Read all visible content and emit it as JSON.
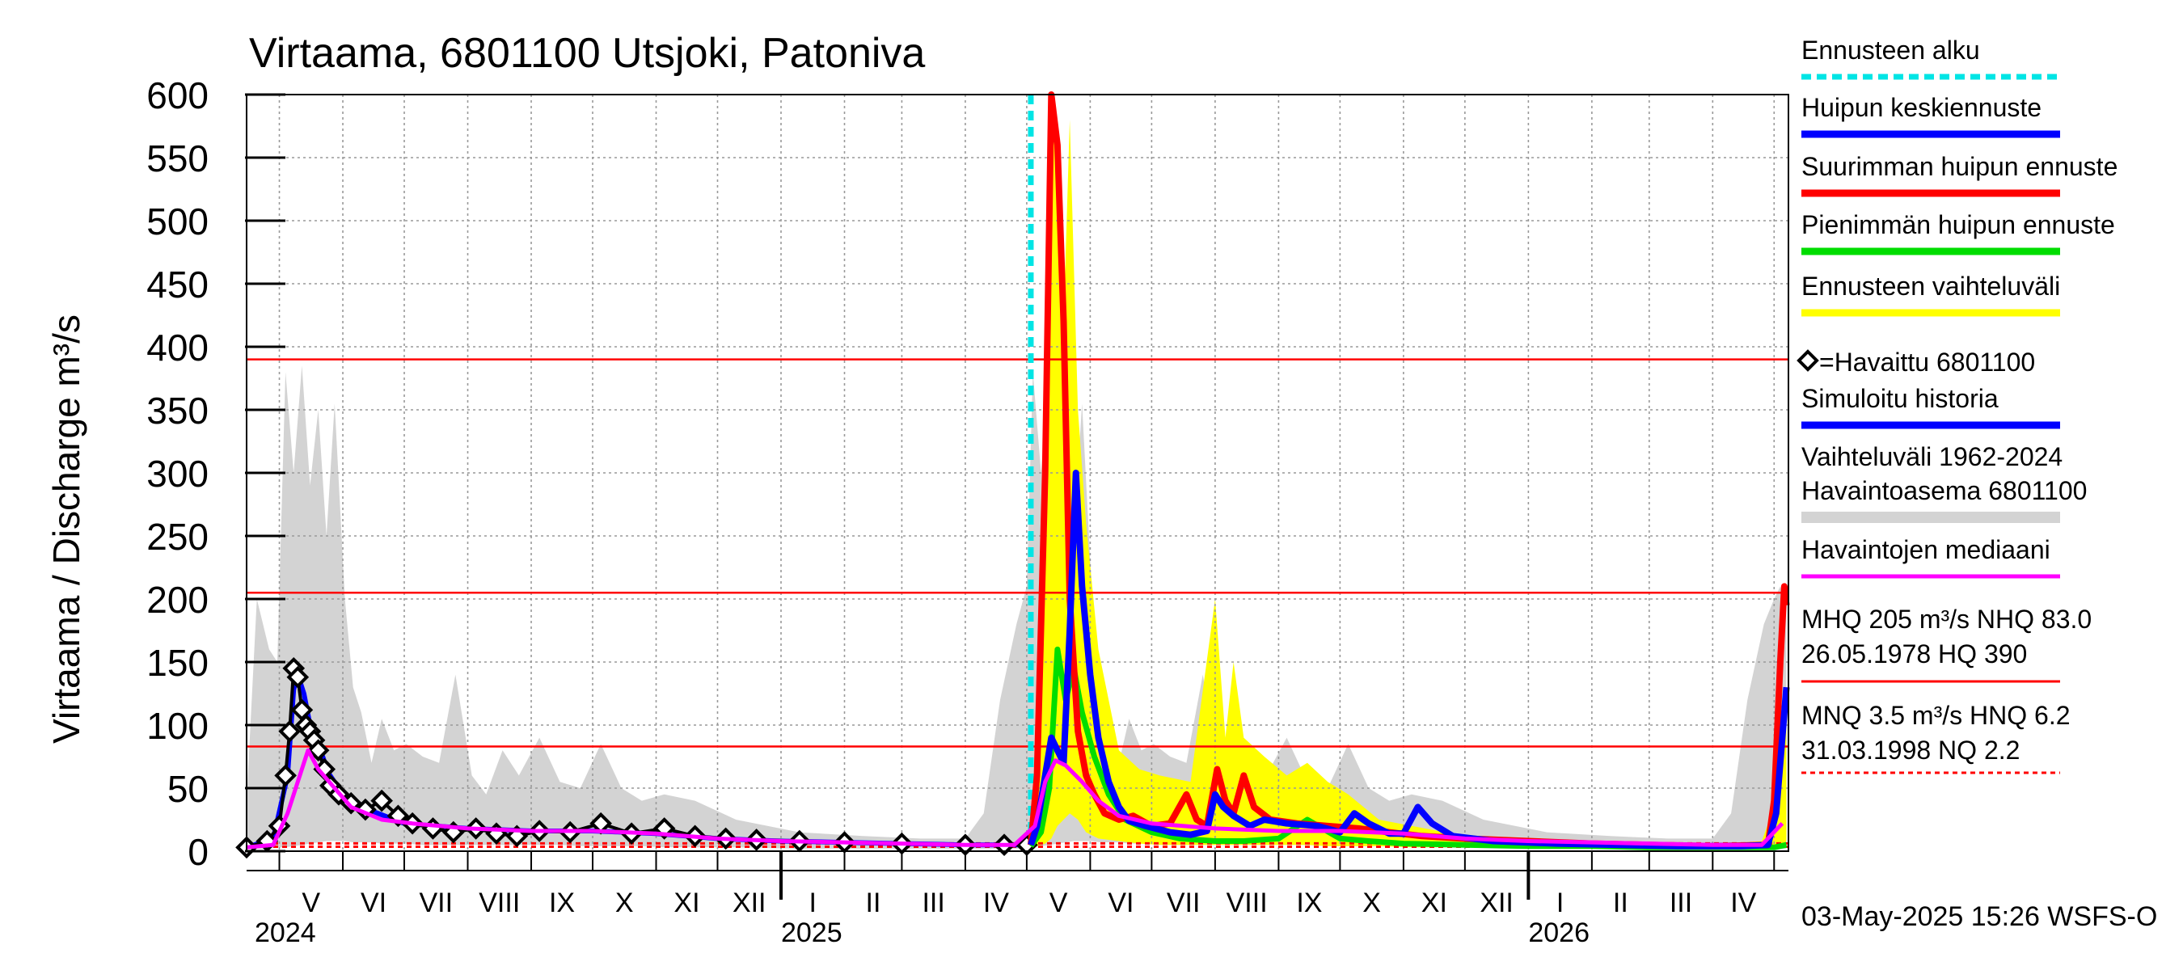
{
  "chart_data": {
    "type": "line",
    "title": "Virtaama, 6801100 Utsjoki, Patoniva",
    "ylabel": "Virtaama / Discharge    m³/s",
    "ylim": [
      0,
      600
    ],
    "yticks": [
      0,
      50,
      100,
      150,
      200,
      250,
      300,
      350,
      400,
      450,
      500,
      550,
      600
    ],
    "xrange": [
      "2024-04-15",
      "2026-05-08"
    ],
    "months": [
      "V",
      "VI",
      "VII",
      "VIII",
      "IX",
      "X",
      "XI",
      "XII",
      "I",
      "II",
      "III",
      "IV",
      "V",
      "VI",
      "VII",
      "VIII",
      "IX",
      "X",
      "XI",
      "XII",
      "I",
      "II",
      "III",
      "IV"
    ],
    "years": [
      "2024",
      "2025",
      "2026"
    ],
    "forecast_start": "2025-05-03",
    "reference_lines": [
      {
        "name": "HQ",
        "value": 390,
        "color": "#ff0000",
        "style": "solid"
      },
      {
        "name": "MHQ",
        "value": 205,
        "color": "#ff0000",
        "style": "solid"
      },
      {
        "name": "NHQ",
        "value": 83,
        "color": "#ff0000",
        "style": "solid"
      },
      {
        "name": "HNQ",
        "value": 6.2,
        "color": "#ff0000",
        "style": "dotted"
      },
      {
        "name": "MNQ",
        "value": 3.5,
        "color": "#ff0000",
        "style": "dotted"
      }
    ],
    "series": [
      {
        "name": "Havaittu 6801100",
        "color": "#000000",
        "style": "diamond-line",
        "x": [
          "2024-04-15",
          "2024-04-25",
          "2024-05-01",
          "2024-05-04",
          "2024-05-06",
          "2024-05-08",
          "2024-05-10",
          "2024-05-12",
          "2024-05-14",
          "2024-05-16",
          "2024-05-18",
          "2024-05-20",
          "2024-05-23",
          "2024-05-26",
          "2024-05-30",
          "2024-06-05",
          "2024-06-12",
          "2024-06-20",
          "2024-06-28",
          "2024-07-05",
          "2024-07-15",
          "2024-07-25",
          "2024-08-05",
          "2024-08-15",
          "2024-08-25",
          "2024-09-05",
          "2024-09-20",
          "2024-10-05",
          "2024-10-20",
          "2024-11-05",
          "2024-11-20",
          "2024-12-05",
          "2024-12-20",
          "2025-01-10",
          "2025-02-01",
          "2025-03-01",
          "2025-04-01",
          "2025-04-20",
          "2025-05-01"
        ],
        "values": [
          3,
          8,
          20,
          60,
          95,
          145,
          138,
          112,
          100,
          95,
          88,
          80,
          65,
          52,
          45,
          38,
          33,
          40,
          28,
          22,
          18,
          15,
          18,
          14,
          12,
          16,
          15,
          22,
          14,
          18,
          12,
          10,
          9,
          8,
          7,
          6,
          5,
          5,
          5
        ]
      },
      {
        "name": "Simuloitu historia",
        "color": "#0000ff",
        "style": "line",
        "x": [
          "2024-04-15",
          "2024-04-28",
          "2024-05-05",
          "2024-05-08",
          "2024-05-10",
          "2024-05-13",
          "2024-05-16",
          "2024-05-20",
          "2024-05-25",
          "2024-06-01",
          "2024-06-15",
          "2024-07-01",
          "2024-08-01",
          "2024-09-01",
          "2024-10-01",
          "2024-11-01",
          "2024-12-01",
          "2025-01-01",
          "2025-02-01",
          "2025-03-01",
          "2025-04-01",
          "2025-05-01"
        ],
        "values": [
          3,
          10,
          60,
          128,
          140,
          125,
          100,
          85,
          62,
          45,
          32,
          22,
          18,
          16,
          16,
          14,
          10,
          8,
          7,
          6,
          5,
          5
        ]
      },
      {
        "name": "Havaintojen mediaani",
        "color": "#ff00ff",
        "style": "line",
        "x": [
          "2024-04-15",
          "2024-04-28",
          "2024-05-05",
          "2024-05-10",
          "2024-05-15",
          "2024-05-20",
          "2024-05-28",
          "2024-06-05",
          "2024-06-20",
          "2024-07-05",
          "2024-08-01",
          "2024-09-01",
          "2024-10-01",
          "2024-11-01",
          "2024-12-01",
          "2025-01-01",
          "2025-02-01",
          "2025-03-01",
          "2025-04-01",
          "2025-04-25",
          "2025-05-05",
          "2025-05-10",
          "2025-05-15",
          "2025-05-20",
          "2025-05-28",
          "2025-06-05",
          "2025-06-15",
          "2025-07-01",
          "2025-08-01",
          "2025-09-01",
          "2025-10-01",
          "2025-11-01",
          "2025-12-01",
          "2026-01-01",
          "2026-02-01",
          "2026-03-01",
          "2026-04-01",
          "2026-04-25",
          "2026-05-05"
        ],
        "values": [
          3,
          5,
          30,
          55,
          80,
          65,
          50,
          35,
          25,
          22,
          18,
          16,
          16,
          14,
          10,
          8,
          7,
          6,
          5,
          5,
          20,
          55,
          72,
          68,
          55,
          40,
          28,
          22,
          18,
          16,
          16,
          14,
          10,
          8,
          7,
          6,
          5,
          5,
          22
        ]
      },
      {
        "name": "Huipun keskiennuste",
        "color": "#0000ff",
        "style": "line",
        "x": [
          "2025-05-03",
          "2025-05-06",
          "2025-05-10",
          "2025-05-13",
          "2025-05-16",
          "2025-05-19",
          "2025-05-22",
          "2025-05-25",
          "2025-05-28",
          "2025-06-01",
          "2025-06-05",
          "2025-06-10",
          "2025-06-15",
          "2025-06-20",
          "2025-06-28",
          "2025-07-10",
          "2025-07-20",
          "2025-07-28",
          "2025-08-01",
          "2025-08-05",
          "2025-08-10",
          "2025-08-18",
          "2025-08-25",
          "2025-09-05",
          "2025-09-20",
          "2025-10-01",
          "2025-10-08",
          "2025-10-15",
          "2025-10-25",
          "2025-11-01",
          "2025-11-08",
          "2025-11-15",
          "2025-11-25",
          "2025-12-15",
          "2026-01-15",
          "2026-02-15",
          "2026-03-15",
          "2026-04-15",
          "2026-04-28",
          "2026-05-02",
          "2026-05-05",
          "2026-05-07"
        ],
        "values": [
          5,
          20,
          60,
          90,
          80,
          70,
          175,
          300,
          210,
          140,
          90,
          55,
          35,
          24,
          20,
          15,
          13,
          16,
          45,
          35,
          28,
          20,
          25,
          22,
          20,
          15,
          30,
          22,
          14,
          14,
          35,
          22,
          12,
          8,
          6,
          5,
          4,
          4,
          5,
          30,
          90,
          130
        ]
      },
      {
        "name": "Suurimman huipun ennuste",
        "color": "#ff0000",
        "style": "line",
        "x": [
          "2025-05-03",
          "2025-05-06",
          "2025-05-10",
          "2025-05-13",
          "2025-05-16",
          "2025-05-19",
          "2025-05-22",
          "2025-05-26",
          "2025-05-30",
          "2025-06-03",
          "2025-06-08",
          "2025-06-15",
          "2025-06-22",
          "2025-07-01",
          "2025-07-10",
          "2025-07-18",
          "2025-07-23",
          "2025-07-28",
          "2025-08-02",
          "2025-08-06",
          "2025-08-10",
          "2025-08-15",
          "2025-08-20",
          "2025-08-28",
          "2025-09-10",
          "2025-09-25",
          "2025-10-10",
          "2025-10-25",
          "2025-11-10",
          "2025-12-01",
          "2026-01-01",
          "2026-02-01",
          "2026-03-01",
          "2026-04-01",
          "2026-04-28",
          "2026-05-01",
          "2026-05-04",
          "2026-05-06",
          "2026-05-07"
        ],
        "values": [
          5,
          60,
          300,
          600,
          560,
          420,
          200,
          95,
          60,
          45,
          30,
          25,
          28,
          20,
          22,
          45,
          25,
          20,
          65,
          40,
          30,
          60,
          35,
          25,
          22,
          20,
          18,
          15,
          12,
          10,
          8,
          6,
          5,
          4,
          5,
          40,
          150,
          210,
          195
        ]
      },
      {
        "name": "Pienimmän huipun ennuste",
        "color": "#00dd00",
        "style": "line",
        "x": [
          "2025-05-03",
          "2025-05-08",
          "2025-05-12",
          "2025-05-16",
          "2025-05-20",
          "2025-05-24",
          "2025-05-28",
          "2025-06-03",
          "2025-06-10",
          "2025-06-18",
          "2025-07-01",
          "2025-07-15",
          "2025-08-01",
          "2025-08-15",
          "2025-09-01",
          "2025-09-15",
          "2025-10-01",
          "2025-10-15",
          "2025-11-01",
          "2025-12-01",
          "2026-01-01",
          "2026-02-01",
          "2026-03-01",
          "2026-04-01",
          "2026-05-01",
          "2026-05-07"
        ],
        "values": [
          4,
          15,
          50,
          160,
          120,
          145,
          110,
          75,
          45,
          25,
          15,
          10,
          8,
          8,
          10,
          25,
          10,
          8,
          6,
          5,
          4,
          4,
          3,
          3,
          3,
          5
        ]
      }
    ],
    "bands": [
      {
        "name": "Ennusteen vaihteluväli",
        "color": "#ffff00",
        "x": [
          "2025-05-03",
          "2025-05-06",
          "2025-05-10",
          "2025-05-13",
          "2025-05-16",
          "2025-05-19",
          "2025-05-22",
          "2025-05-26",
          "2025-05-30",
          "2025-06-05",
          "2025-06-15",
          "2025-06-25",
          "2025-07-05",
          "2025-07-20",
          "2025-08-01",
          "2025-08-06",
          "2025-08-10",
          "2025-08-15",
          "2025-08-25",
          "2025-09-05",
          "2025-09-15",
          "2025-09-25",
          "2025-10-05",
          "2025-10-20",
          "2025-11-05",
          "2025-12-01",
          "2026-01-01",
          "2026-02-01",
          "2026-03-01",
          "2026-04-01",
          "2026-04-25",
          "2026-05-02",
          "2026-05-05",
          "2026-05-07"
        ],
        "upper": [
          5,
          60,
          300,
          600,
          560,
          420,
          580,
          350,
          260,
          160,
          80,
          65,
          60,
          55,
          200,
          90,
          150,
          90,
          75,
          60,
          70,
          55,
          45,
          25,
          20,
          12,
          10,
          8,
          6,
          5,
          8,
          40,
          90,
          120
        ],
        "lower": [
          3,
          4,
          6,
          10,
          20,
          25,
          30,
          25,
          15,
          10,
          8,
          6,
          5,
          5,
          5,
          5,
          5,
          5,
          5,
          5,
          5,
          4,
          4,
          4,
          3,
          3,
          3,
          2,
          2,
          2,
          2,
          3,
          5,
          8
        ]
      },
      {
        "name": "Vaihteluväli 1962-2024 Havaintoasema 6801100",
        "color": "#d3d3d3",
        "x": [
          "2024-04-15",
          "2024-04-20",
          "2024-04-26",
          "2024-04-30",
          "2024-05-04",
          "2024-05-08",
          "2024-05-12",
          "2024-05-16",
          "2024-05-20",
          "2024-05-24",
          "2024-05-28",
          "2024-06-02",
          "2024-06-06",
          "2024-06-10",
          "2024-06-15",
          "2024-06-20",
          "2024-06-26",
          "2024-07-02",
          "2024-07-10",
          "2024-07-18",
          "2024-07-26",
          "2024-08-03",
          "2024-08-10",
          "2024-08-18",
          "2024-08-26",
          "2024-09-05",
          "2024-09-15",
          "2024-09-25",
          "2024-10-05",
          "2024-10-15",
          "2024-10-25",
          "2024-11-05",
          "2024-11-20",
          "2024-12-10",
          "2025-01-10",
          "2025-02-10",
          "2025-03-10",
          "2025-04-01",
          "2025-04-10",
          "2025-04-18",
          "2025-04-26",
          "2025-05-01",
          "2025-05-04",
          "2025-05-08",
          "2025-05-12",
          "2025-05-16",
          "2025-05-20",
          "2025-05-24",
          "2025-05-28",
          "2025-06-02",
          "2025-06-06",
          "2025-06-10",
          "2025-06-15",
          "2025-06-20",
          "2025-06-26",
          "2025-07-02",
          "2025-07-10",
          "2025-07-18",
          "2025-07-26",
          "2025-08-03",
          "2025-08-10",
          "2025-08-18",
          "2025-08-26",
          "2025-09-05",
          "2025-09-15",
          "2025-09-25",
          "2025-10-05",
          "2025-10-15",
          "2025-10-25",
          "2025-11-05",
          "2025-11-20",
          "2025-12-10",
          "2026-01-10",
          "2026-02-10",
          "2026-03-10",
          "2026-04-01",
          "2026-04-10",
          "2026-04-18",
          "2026-04-26",
          "2026-05-01",
          "2026-05-04",
          "2026-05-07"
        ],
        "upper": [
          40,
          200,
          160,
          150,
          380,
          300,
          385,
          290,
          350,
          250,
          355,
          200,
          130,
          110,
          70,
          105,
          80,
          85,
          75,
          70,
          140,
          60,
          45,
          80,
          60,
          90,
          55,
          50,
          85,
          50,
          40,
          45,
          40,
          25,
          15,
          12,
          10,
          10,
          30,
          120,
          180,
          210,
          380,
          300,
          385,
          290,
          350,
          250,
          355,
          200,
          130,
          110,
          70,
          105,
          80,
          85,
          75,
          70,
          140,
          60,
          45,
          80,
          60,
          90,
          55,
          50,
          85,
          50,
          40,
          45,
          40,
          25,
          15,
          12,
          10,
          10,
          30,
          120,
          180,
          200,
          210,
          195
        ],
        "lower": [
          2,
          2,
          2,
          3,
          3,
          4,
          5,
          6,
          7,
          8,
          8,
          8,
          7,
          7,
          7,
          6,
          6,
          6,
          5,
          5,
          5,
          5,
          5,
          5,
          5,
          5,
          5,
          4,
          4,
          4,
          4,
          3,
          3,
          3,
          2,
          2,
          2,
          2,
          2,
          2,
          2,
          2,
          3,
          4,
          5,
          6,
          7,
          8,
          8,
          8,
          7,
          7,
          7,
          6,
          6,
          6,
          5,
          5,
          5,
          5,
          5,
          5,
          5,
          5,
          5,
          4,
          4,
          4,
          4,
          3,
          3,
          3,
          2,
          2,
          2,
          2,
          2,
          2,
          2,
          2,
          2,
          2
        ]
      }
    ],
    "legend": {
      "placement": "right",
      "items": [
        {
          "label": "Ennusteen alku",
          "color": "#00e5e5",
          "style": "dashed"
        },
        {
          "label": "Huipun keskiennuste",
          "color": "#0000ff",
          "style": "solid"
        },
        {
          "label": "Suurimman huipun ennuste",
          "color": "#ff0000",
          "style": "solid"
        },
        {
          "label": "Pienimmän huipun ennuste",
          "color": "#00dd00",
          "style": "solid"
        },
        {
          "label": "Ennusteen vaihteluväli",
          "color": "#ffff00",
          "style": "solid"
        },
        {
          "label": "=Havaittu 6801100",
          "color": "#000000",
          "style": "diamond"
        },
        {
          "label": "Simuloitu historia",
          "color": "#0000ff",
          "style": "solid"
        },
        {
          "label": "Vaihteluväli 1962-2024",
          "label2": " Havaintoasema 6801100",
          "color": "#d3d3d3",
          "style": "solid"
        },
        {
          "label": "Havaintojen mediaani",
          "color": "#ff00ff",
          "style": "solid"
        }
      ],
      "stats1": [
        "MHQ  205 m³/s NHQ 83.0",
        "26.05.1978 HQ  390"
      ],
      "stats2": [
        "MNQ  3.5 m³/s HNQ  6.2",
        "31.03.1998 NQ  2.2"
      ]
    },
    "footer": "03-May-2025 15:26 WSFS-O"
  }
}
